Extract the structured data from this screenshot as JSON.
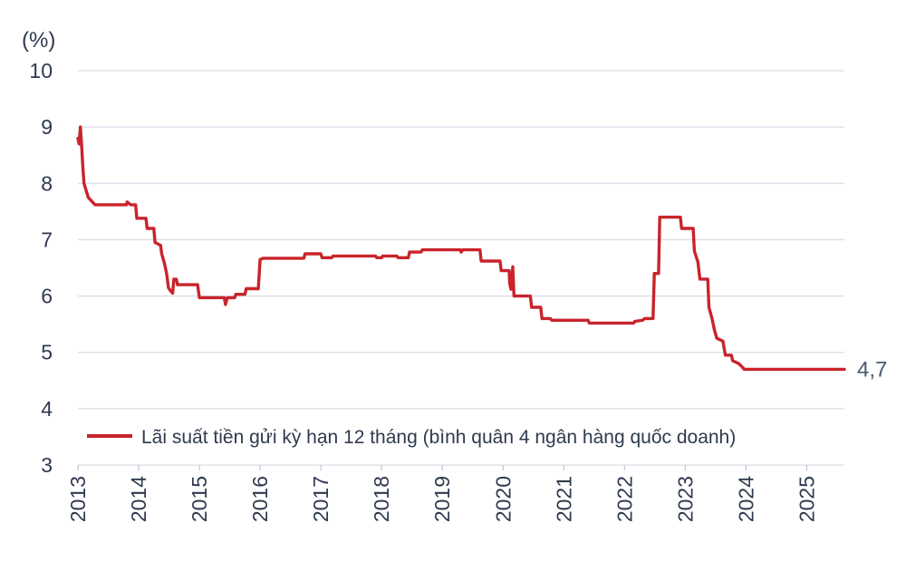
{
  "chart_data": {
    "type": "line",
    "title": "",
    "xlabel": "",
    "ylabel": "(%)",
    "ylim": [
      3,
      10
    ],
    "yticks": [
      "10",
      "9",
      "8",
      "7",
      "6",
      "5",
      "4",
      "3"
    ],
    "xlim": [
      2013.0,
      2025.62
    ],
    "xticks": [
      "2013",
      "2014",
      "2015",
      "2016",
      "2017",
      "2018",
      "2019",
      "2020",
      "2021",
      "2022",
      "2023",
      "2024",
      "2025"
    ],
    "grid": "horizontal",
    "legend_position": "bottom-left",
    "end_label": "4,7",
    "colors": {
      "line": "#c9242b",
      "grid": "#d9dee7",
      "text": "#2f3a4f"
    },
    "series": [
      {
        "name": "Lãi suất tiền gửi kỳ hạn 12 tháng (bình quân 4 ngân hàng quốc doanh)",
        "points": [
          [
            2013.0,
            8.8
          ],
          [
            2013.02,
            8.7
          ],
          [
            2013.04,
            9.0
          ],
          [
            2013.06,
            8.7
          ],
          [
            2013.08,
            8.3
          ],
          [
            2013.1,
            8.0
          ],
          [
            2013.17,
            7.75
          ],
          [
            2013.28,
            7.62
          ],
          [
            2013.8,
            7.62
          ],
          [
            2013.81,
            7.67
          ],
          [
            2013.87,
            7.62
          ],
          [
            2013.95,
            7.62
          ],
          [
            2013.97,
            7.38
          ],
          [
            2014.12,
            7.38
          ],
          [
            2014.14,
            7.2
          ],
          [
            2014.25,
            7.2
          ],
          [
            2014.27,
            6.95
          ],
          [
            2014.36,
            6.9
          ],
          [
            2014.38,
            6.75
          ],
          [
            2014.42,
            6.6
          ],
          [
            2014.46,
            6.4
          ],
          [
            2014.49,
            6.15
          ],
          [
            2014.52,
            6.1
          ],
          [
            2014.56,
            6.05
          ],
          [
            2014.58,
            6.3
          ],
          [
            2014.62,
            6.3
          ],
          [
            2014.64,
            6.2
          ],
          [
            2014.97,
            6.2
          ],
          [
            2015.0,
            5.97
          ],
          [
            2015.41,
            5.97
          ],
          [
            2015.43,
            5.85
          ],
          [
            2015.46,
            5.97
          ],
          [
            2015.58,
            5.97
          ],
          [
            2015.6,
            6.03
          ],
          [
            2015.75,
            6.03
          ],
          [
            2015.77,
            6.13
          ],
          [
            2015.97,
            6.13
          ],
          [
            2016.0,
            6.65
          ],
          [
            2016.05,
            6.67
          ],
          [
            2016.72,
            6.67
          ],
          [
            2016.74,
            6.75
          ],
          [
            2017.0,
            6.75
          ],
          [
            2017.02,
            6.68
          ],
          [
            2017.18,
            6.68
          ],
          [
            2017.2,
            6.71
          ],
          [
            2017.9,
            6.71
          ],
          [
            2017.92,
            6.68
          ],
          [
            2018.0,
            6.68
          ],
          [
            2018.02,
            6.71
          ],
          [
            2018.25,
            6.71
          ],
          [
            2018.27,
            6.68
          ],
          [
            2018.44,
            6.68
          ],
          [
            2018.46,
            6.78
          ],
          [
            2018.65,
            6.78
          ],
          [
            2018.67,
            6.82
          ],
          [
            2019.3,
            6.82
          ],
          [
            2019.31,
            6.78
          ],
          [
            2019.34,
            6.82
          ],
          [
            2019.62,
            6.82
          ],
          [
            2019.64,
            6.62
          ],
          [
            2019.95,
            6.62
          ],
          [
            2019.97,
            6.45
          ],
          [
            2020.1,
            6.45
          ],
          [
            2020.11,
            6.22
          ],
          [
            2020.13,
            6.12
          ],
          [
            2020.16,
            6.52
          ],
          [
            2020.18,
            6.0
          ],
          [
            2020.45,
            6.0
          ],
          [
            2020.47,
            5.8
          ],
          [
            2020.62,
            5.8
          ],
          [
            2020.64,
            5.6
          ],
          [
            2020.78,
            5.6
          ],
          [
            2020.8,
            5.57
          ],
          [
            2021.4,
            5.57
          ],
          [
            2021.42,
            5.52
          ],
          [
            2022.15,
            5.52
          ],
          [
            2022.17,
            5.55
          ],
          [
            2022.3,
            5.57
          ],
          [
            2022.33,
            5.6
          ],
          [
            2022.47,
            5.6
          ],
          [
            2022.49,
            6.4
          ],
          [
            2022.56,
            6.4
          ],
          [
            2022.58,
            7.4
          ],
          [
            2022.92,
            7.4
          ],
          [
            2022.94,
            7.2
          ],
          [
            2023.13,
            7.2
          ],
          [
            2023.15,
            6.8
          ],
          [
            2023.21,
            6.6
          ],
          [
            2023.24,
            6.3
          ],
          [
            2023.37,
            6.3
          ],
          [
            2023.39,
            5.8
          ],
          [
            2023.44,
            5.6
          ],
          [
            2023.48,
            5.4
          ],
          [
            2023.52,
            5.25
          ],
          [
            2023.62,
            5.2
          ],
          [
            2023.66,
            4.95
          ],
          [
            2023.76,
            4.95
          ],
          [
            2023.78,
            4.85
          ],
          [
            2023.88,
            4.8
          ],
          [
            2023.93,
            4.75
          ],
          [
            2023.97,
            4.7
          ],
          [
            2025.62,
            4.7
          ]
        ]
      }
    ]
  }
}
